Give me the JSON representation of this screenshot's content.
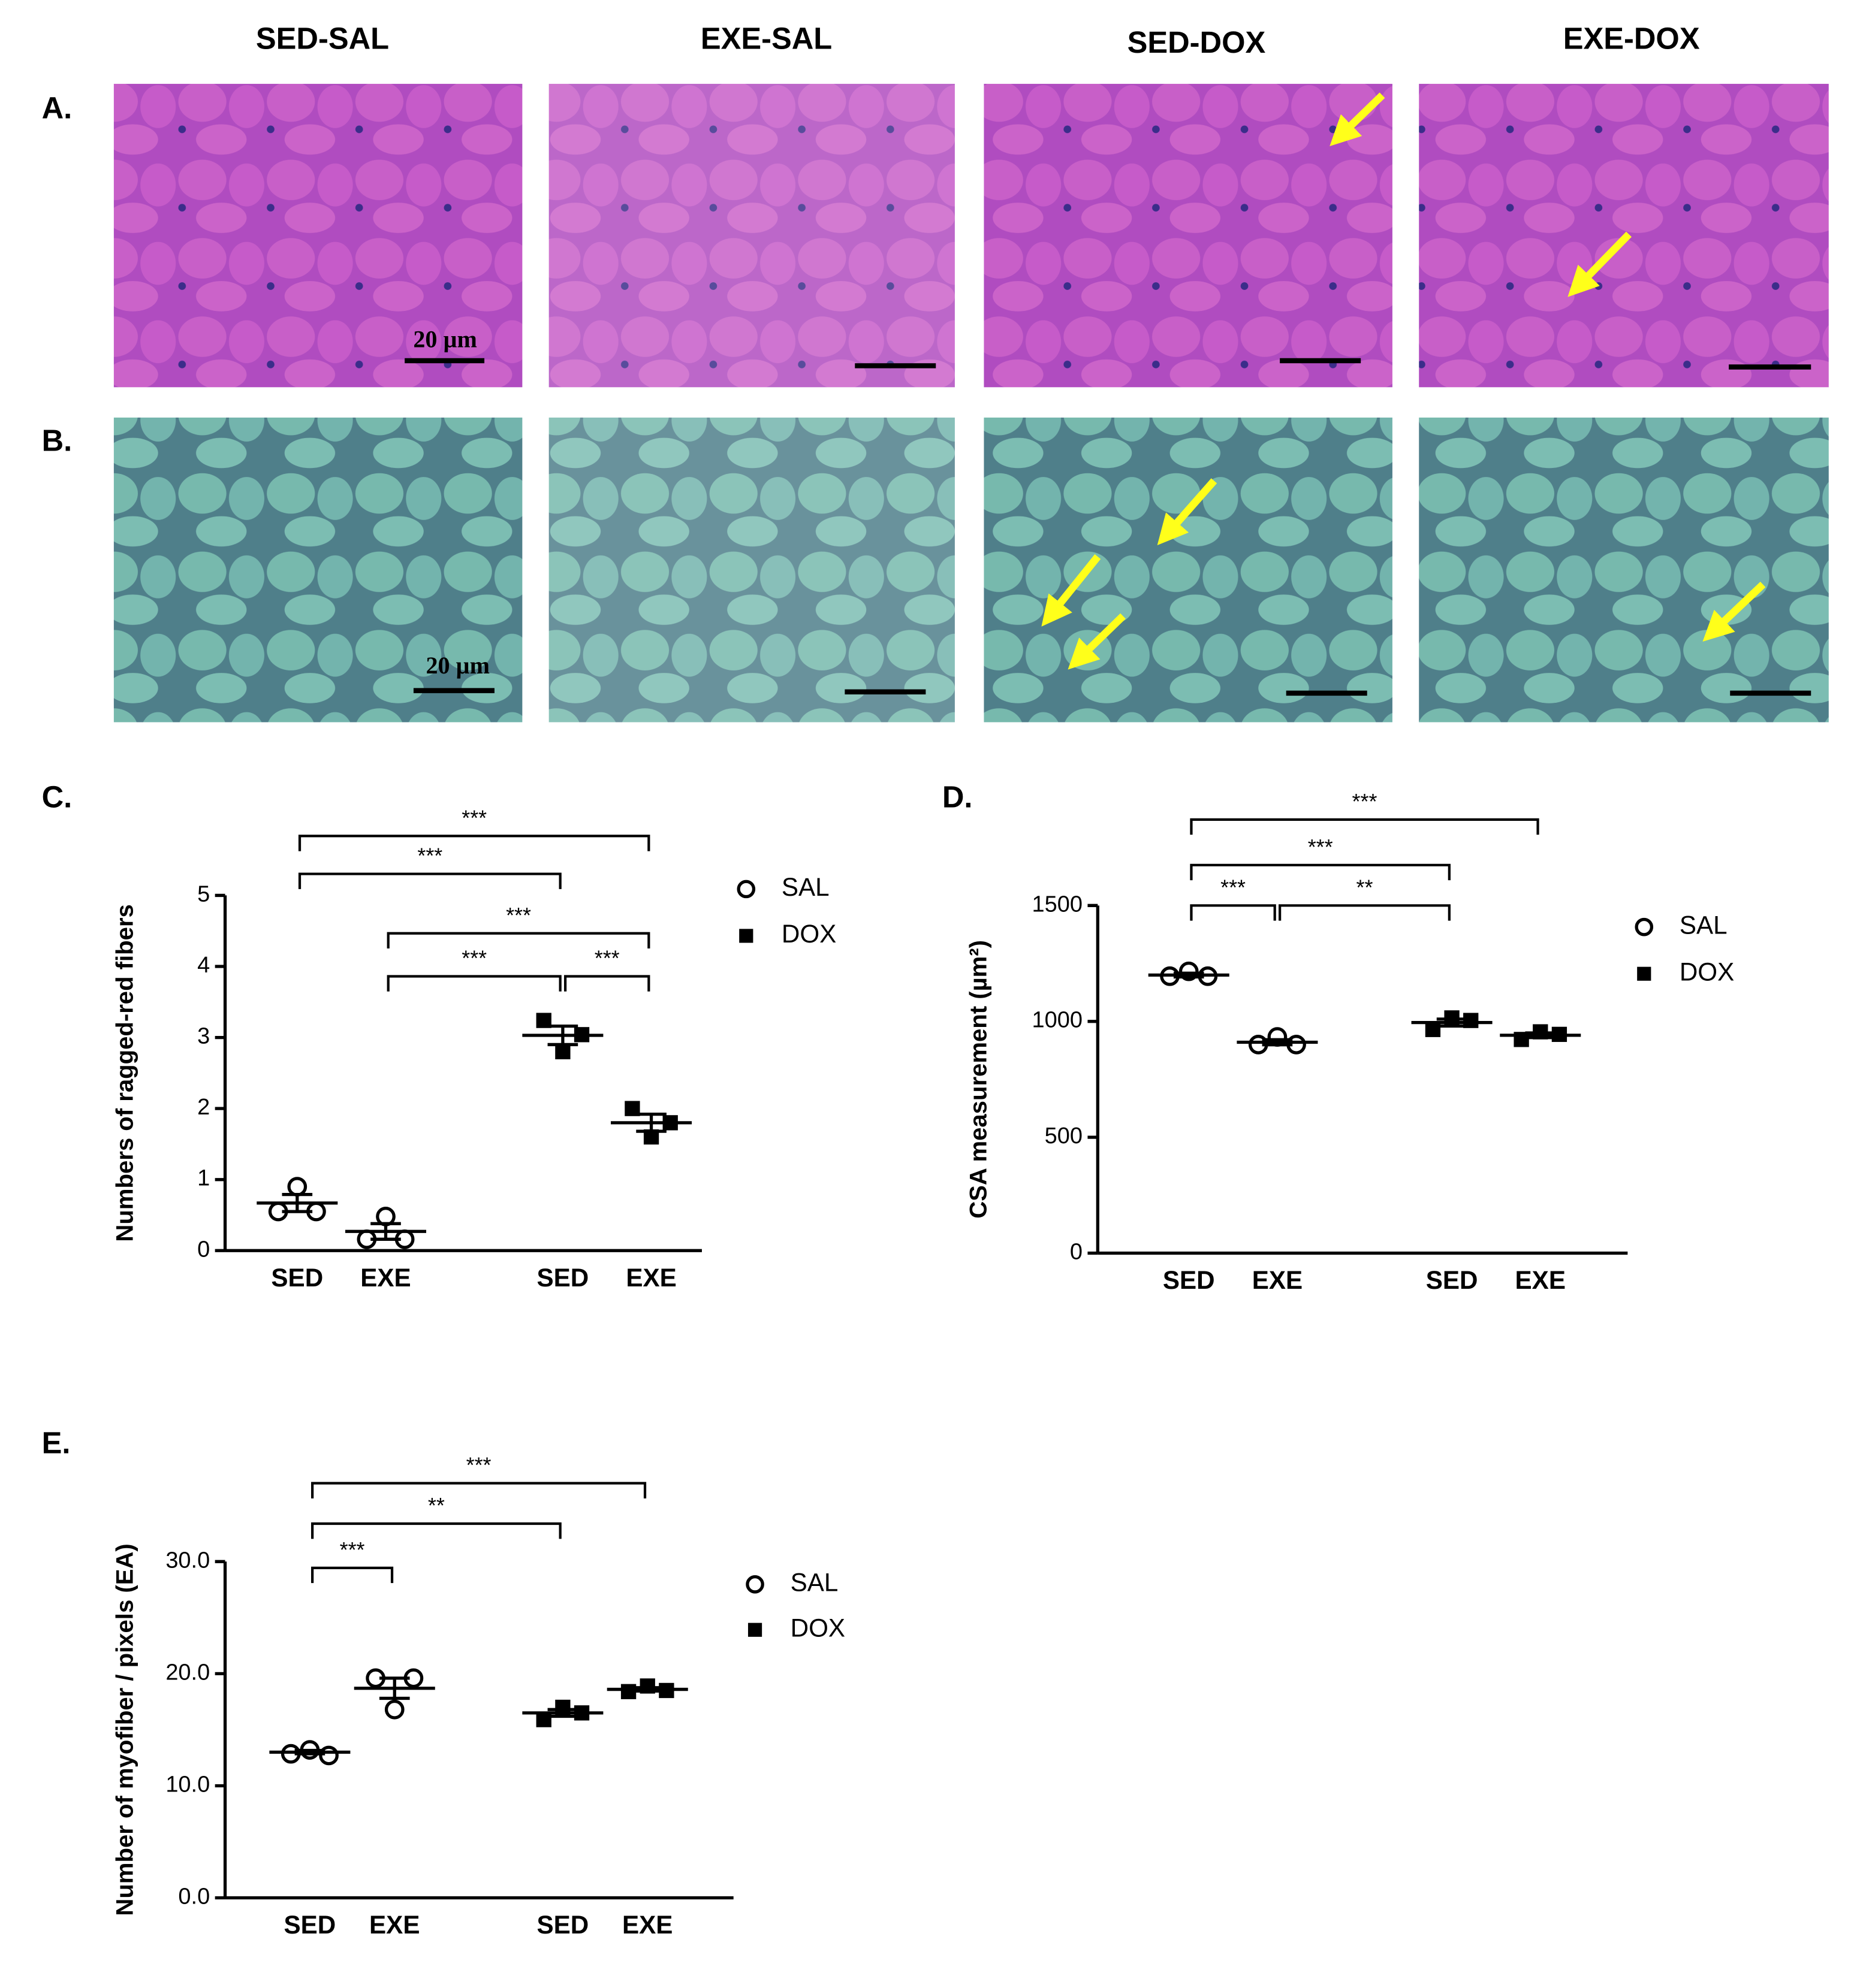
{
  "figure": {
    "columns": [
      "SED-SAL",
      "EXE-SAL",
      "SED-DOX",
      "EXE-DOX"
    ],
    "rows": [
      "A.",
      "B."
    ],
    "scale_labels": [
      "20 µm",
      "20 µm"
    ]
  },
  "chart_data": [
    {
      "type": "scatter",
      "panel_label": "C.",
      "ylabel": "Numbers of ragged-red fibers",
      "categories": [
        "SED",
        "EXE",
        "SED",
        "EXE"
      ],
      "ylim": [
        0,
        5
      ],
      "yticks": [
        0,
        1,
        2,
        3,
        4,
        5
      ],
      "legend": "right",
      "series": [
        {
          "name": "SAL",
          "marker": "circle",
          "color": "#000000",
          "points": [
            [
              0.55,
              0.9,
              0.55
            ],
            [
              0.16,
              0.48,
              0.16
            ],
            null,
            null
          ],
          "means": [
            0.67,
            0.27,
            null,
            null
          ],
          "sems": [
            0.12,
            0.11,
            null,
            null
          ]
        },
        {
          "name": "DOX",
          "marker": "square",
          "color": "#000000",
          "points": [
            null,
            null,
            [
              3.24,
              2.8,
              3.04
            ],
            [
              2.0,
              1.6,
              1.8
            ]
          ],
          "means": [
            null,
            null,
            3.03,
            1.8
          ],
          "sems": [
            null,
            null,
            0.13,
            0.12
          ]
        }
      ],
      "comparisons": [
        {
          "groups": [
            0,
            3
          ],
          "label": "***"
        },
        {
          "groups": [
            0,
            2
          ],
          "label": "***"
        },
        {
          "groups": [
            1,
            3
          ],
          "label": "***"
        },
        {
          "groups": [
            1,
            2
          ],
          "label": "***"
        },
        {
          "groups": [
            2,
            3
          ],
          "label": "***"
        }
      ]
    },
    {
      "type": "scatter",
      "panel_label": "D.",
      "ylabel": "CSA measurement (µm²)",
      "categories": [
        "SED",
        "EXE",
        "SED",
        "EXE"
      ],
      "ylim": [
        0,
        1500
      ],
      "yticks": [
        0,
        500,
        1000,
        1500
      ],
      "legend": "right",
      "series": [
        {
          "name": "SAL",
          "marker": "circle",
          "color": "#000000",
          "points": [
            [
              1195,
              1216,
              1195
            ],
            [
              900,
              933,
              900
            ],
            null,
            null
          ],
          "means": [
            1200,
            910,
            null,
            null
          ],
          "sems": [
            8,
            11,
            null,
            null
          ]
        },
        {
          "name": "DOX",
          "marker": "square",
          "color": "#000000",
          "points": [
            null,
            null,
            [
              965,
              1015,
              1004
            ],
            [
              922,
              955,
              944
            ]
          ],
          "means": [
            null,
            null,
            995,
            940
          ],
          "sems": [
            null,
            null,
            15,
            10
          ]
        }
      ],
      "comparisons": [
        {
          "groups": [
            0,
            3
          ],
          "label": "***"
        },
        {
          "groups": [
            0,
            2
          ],
          "label": "***"
        },
        {
          "groups": [
            0,
            1
          ],
          "label": "***"
        },
        {
          "groups": [
            1,
            2
          ],
          "label": "**"
        }
      ]
    },
    {
      "type": "scatter",
      "panel_label": "E.",
      "ylabel": "Number of myofiber / pixels (EA)",
      "categories": [
        "SED",
        "EXE",
        "SED",
        "EXE"
      ],
      "ylim": [
        0,
        30
      ],
      "yticks": [
        {
          "value": 0,
          "label": "0.0"
        },
        {
          "value": 10,
          "label": "10.0"
        },
        {
          "value": 20,
          "label": "20.0"
        },
        {
          "value": 30,
          "label": "30.0"
        }
      ],
      "legend": "right",
      "series": [
        {
          "name": "SAL",
          "marker": "circle",
          "color": "#000000",
          "points": [
            [
              12.85,
              13.2,
              12.7
            ],
            [
              19.6,
              16.8,
              19.6
            ],
            null,
            null
          ],
          "means": [
            13.0,
            18.7,
            null,
            null
          ],
          "sems": [
            0.15,
            0.9,
            null,
            null
          ]
        },
        {
          "name": "DOX",
          "marker": "square",
          "color": "#000000",
          "points": [
            null,
            null,
            [
              15.9,
              17.0,
              16.5
            ],
            [
              18.4,
              18.9,
              18.5
            ]
          ],
          "means": [
            null,
            null,
            16.5,
            18.6
          ],
          "sems": [
            null,
            null,
            0.3,
            0.15
          ]
        }
      ],
      "comparisons": [
        {
          "groups": [
            0,
            3
          ],
          "label": "***"
        },
        {
          "groups": [
            0,
            2
          ],
          "label": "**"
        },
        {
          "groups": [
            0,
            1
          ],
          "label": "***"
        }
      ]
    }
  ]
}
